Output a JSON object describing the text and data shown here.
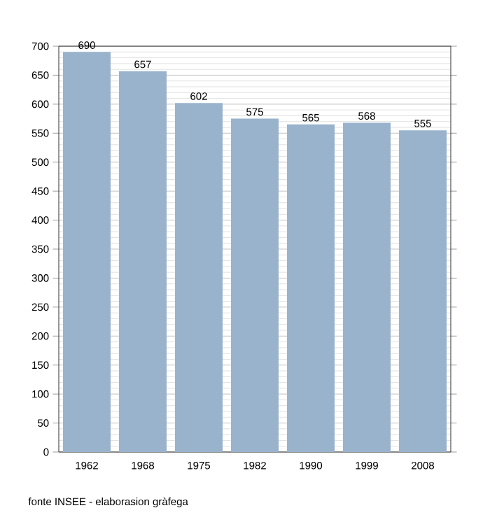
{
  "chart_data": {
    "type": "bar",
    "categories": [
      "1962",
      "1968",
      "1975",
      "1982",
      "1990",
      "1999",
      "2008"
    ],
    "values": [
      690,
      657,
      602,
      575,
      565,
      568,
      555
    ],
    "color": "#9ab3cc",
    "ylim": [
      0,
      700
    ],
    "yticks": [
      0,
      50,
      100,
      150,
      200,
      250,
      300,
      350,
      400,
      450,
      500,
      550,
      600,
      650,
      700
    ],
    "grid": "y",
    "data_labels": true,
    "annotations": [
      "fonte INSEE - elaborasion gràfega"
    ]
  }
}
